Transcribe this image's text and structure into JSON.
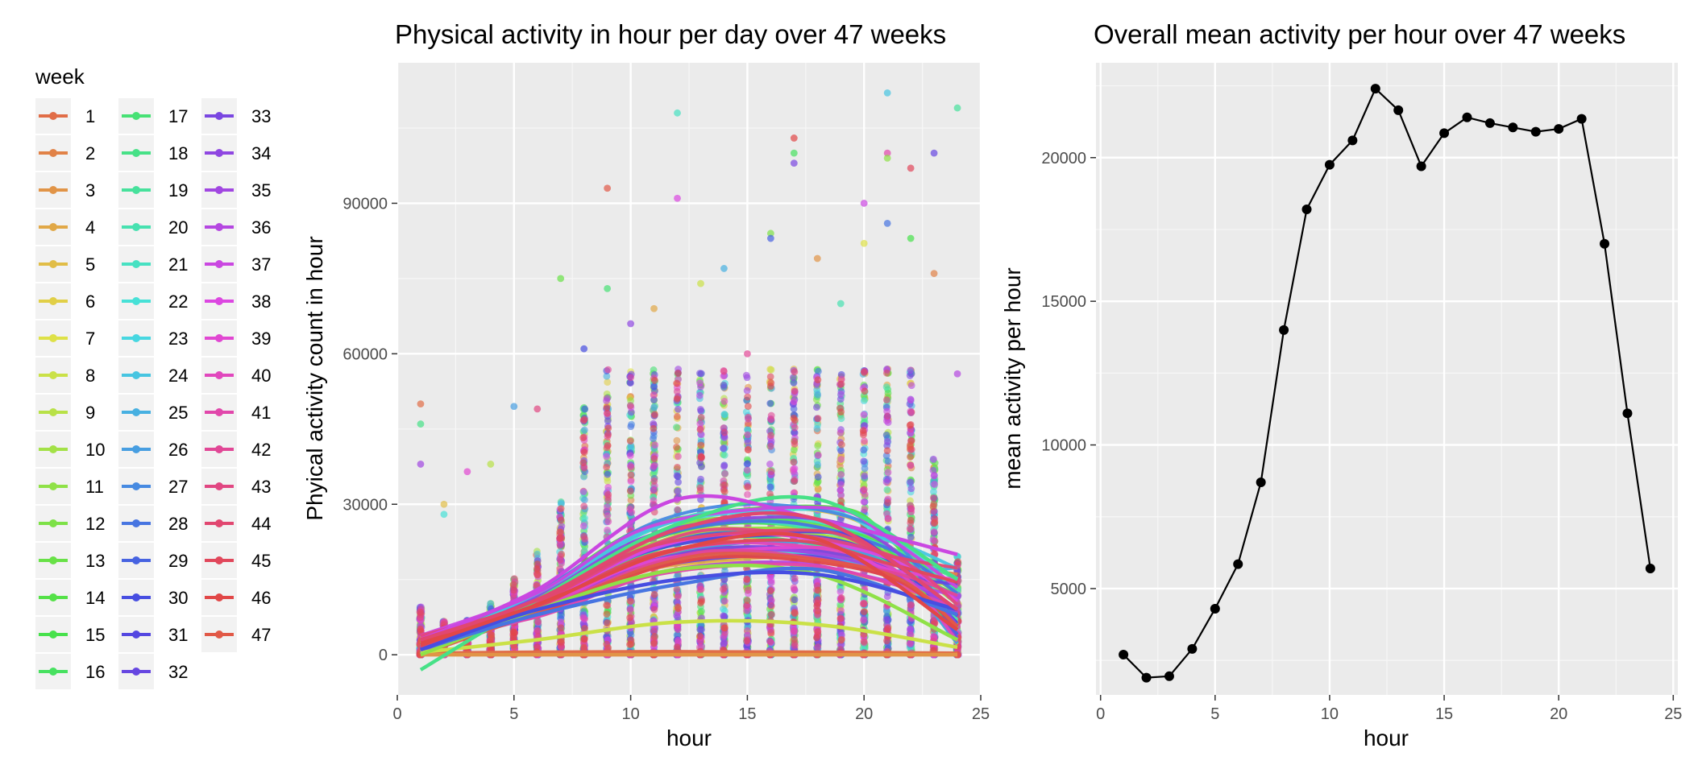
{
  "legend": {
    "title": "week",
    "items": [
      "1",
      "2",
      "3",
      "4",
      "5",
      "6",
      "7",
      "8",
      "9",
      "10",
      "11",
      "12",
      "13",
      "14",
      "15",
      "16",
      "17",
      "18",
      "19",
      "20",
      "21",
      "22",
      "23",
      "24",
      "25",
      "26",
      "27",
      "28",
      "29",
      "30",
      "31",
      "32",
      "33",
      "34",
      "35",
      "36",
      "37",
      "38",
      "39",
      "40",
      "41",
      "42",
      "43",
      "44",
      "45",
      "46",
      "47"
    ]
  },
  "chart_data": [
    {
      "type": "scatter",
      "title": "Physical activity in hour per day over 47 weeks",
      "xlabel": "hour",
      "ylabel": "Phyical activity count in hour",
      "xlim": [
        0,
        25
      ],
      "ylim": [
        -8000,
        118000
      ],
      "x_ticks": [
        0,
        5,
        10,
        15,
        20,
        25
      ],
      "y_ticks": [
        0,
        30000,
        60000,
        90000
      ],
      "y_tick_labels": [
        "0",
        "30000",
        "60000",
        "90000"
      ],
      "grid": true,
      "legend_position": "left",
      "series_count": 47,
      "smooth_lines": [
        {
          "name": "1",
          "x": [
            1,
            6,
            12,
            18,
            24
          ],
          "y": [
            300,
            500,
            600,
            500,
            300
          ]
        },
        {
          "name": "3",
          "x": [
            1,
            6,
            12,
            18,
            24
          ],
          "y": [
            0,
            0,
            0,
            0,
            0
          ]
        },
        {
          "name": "8",
          "x": [
            1,
            6,
            12,
            18,
            24
          ],
          "y": [
            500,
            3000,
            6500,
            6000,
            1500
          ]
        },
        {
          "name": "11",
          "x": [
            1,
            6,
            12,
            18,
            24
          ],
          "y": [
            0,
            9000,
            17000,
            16000,
            3000
          ]
        },
        {
          "name": "18",
          "x": [
            1,
            6,
            12,
            18,
            24
          ],
          "y": [
            -3000,
            11000,
            26000,
            31000,
            15000
          ]
        },
        {
          "name": "28",
          "x": [
            1,
            6,
            12,
            18,
            24
          ],
          "y": [
            1000,
            8000,
            14000,
            17000,
            8000
          ]
        },
        {
          "name": "30",
          "x": [
            1,
            6,
            12,
            18,
            24
          ],
          "y": [
            1000,
            9000,
            15000,
            16000,
            9000
          ]
        },
        {
          "name": "37",
          "x": [
            1,
            6,
            12,
            18,
            24
          ],
          "y": [
            3000,
            13000,
            31000,
            27000,
            20000
          ]
        },
        {
          "name": "44",
          "x": [
            1,
            6,
            12,
            18,
            24
          ],
          "y": [
            3000,
            11000,
            25000,
            27000,
            9000
          ]
        },
        {
          "name": "46",
          "x": [
            1,
            6,
            12,
            18,
            24
          ],
          "y": [
            2000,
            10000,
            21000,
            23000,
            5000
          ]
        }
      ],
      "notable_points": [
        {
          "x": 1,
          "y": 50000
        },
        {
          "x": 1,
          "y": 46000
        },
        {
          "x": 1,
          "y": 38000
        },
        {
          "x": 2,
          "y": 30000
        },
        {
          "x": 2,
          "y": 28000
        },
        {
          "x": 3,
          "y": 36500
        },
        {
          "x": 4,
          "y": 38000
        },
        {
          "x": 5,
          "y": 49500
        },
        {
          "x": 6,
          "y": 49000
        },
        {
          "x": 7,
          "y": 75000
        },
        {
          "x": 8,
          "y": 61000
        },
        {
          "x": 9,
          "y": 93000
        },
        {
          "x": 9,
          "y": 73000
        },
        {
          "x": 10,
          "y": 66000
        },
        {
          "x": 11,
          "y": 69000
        },
        {
          "x": 12,
          "y": 108000
        },
        {
          "x": 12,
          "y": 91000
        },
        {
          "x": 13,
          "y": 74000
        },
        {
          "x": 14,
          "y": 77000
        },
        {
          "x": 15,
          "y": 60000
        },
        {
          "x": 16,
          "y": 84000
        },
        {
          "x": 16,
          "y": 83000
        },
        {
          "x": 17,
          "y": 103000
        },
        {
          "x": 17,
          "y": 100000
        },
        {
          "x": 17,
          "y": 98000
        },
        {
          "x": 18,
          "y": 79000
        },
        {
          "x": 19,
          "y": 70000
        },
        {
          "x": 20,
          "y": 90000
        },
        {
          "x": 20,
          "y": 82000
        },
        {
          "x": 21,
          "y": 112000
        },
        {
          "x": 21,
          "y": 100000
        },
        {
          "x": 21,
          "y": 99000
        },
        {
          "x": 21,
          "y": 86000
        },
        {
          "x": 22,
          "y": 97000
        },
        {
          "x": 22,
          "y": 83000
        },
        {
          "x": 23,
          "y": 100000
        },
        {
          "x": 23,
          "y": 76000
        },
        {
          "x": 24,
          "y": 109000
        },
        {
          "x": 24,
          "y": 56000
        }
      ]
    },
    {
      "type": "line",
      "title": "Overall mean activity per hour over 47 weeks",
      "xlabel": "hour",
      "ylabel": "mean activity per hour",
      "xlim": [
        -0.2,
        25.2
      ],
      "ylim": [
        1300,
        23300
      ],
      "x_ticks": [
        0,
        5,
        10,
        15,
        20,
        25
      ],
      "y_ticks": [
        5000,
        10000,
        15000,
        20000
      ],
      "y_tick_labels": [
        "5000",
        "10000",
        "15000",
        "20000"
      ],
      "grid": true,
      "x": [
        1,
        2,
        3,
        4,
        5,
        6,
        7,
        8,
        9,
        10,
        11,
        12,
        13,
        14,
        15,
        16,
        17,
        18,
        19,
        20,
        21,
        22,
        23,
        24
      ],
      "y": [
        2700,
        1900,
        1950,
        2900,
        4300,
        5850,
        8700,
        14000,
        18200,
        19750,
        20600,
        22400,
        21650,
        19700,
        20850,
        21400,
        21200,
        21050,
        20900,
        21000,
        21350,
        17000,
        11100,
        5700
      ],
      "color": "#000000"
    }
  ]
}
